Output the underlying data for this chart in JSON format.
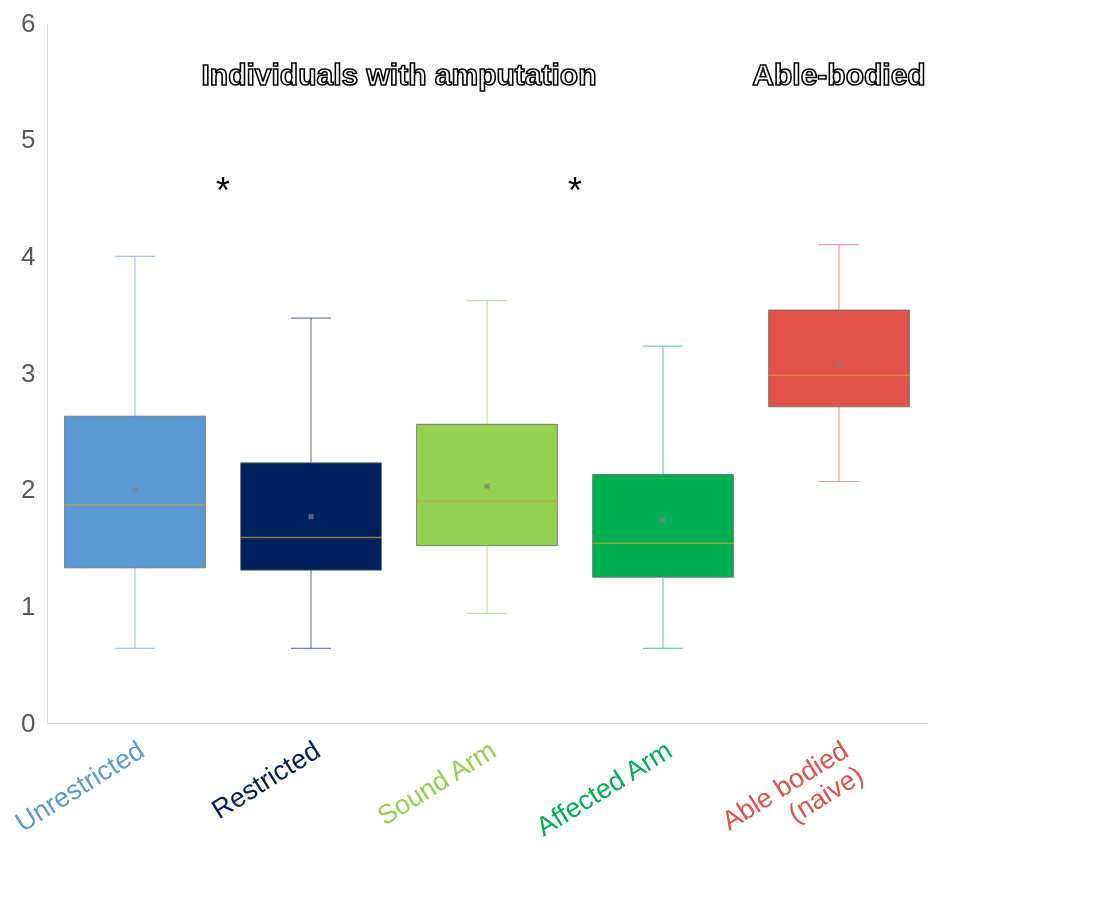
{
  "chart_data": {
    "type": "box",
    "categories": [
      "Unrestricted",
      "Restricted",
      "Sound Arm",
      "Affected Arm",
      "Able bodied\n(naive)"
    ],
    "colors": [
      "#5b9bd5",
      "#002060",
      "#92d050",
      "#00b050",
      "#e0524a"
    ],
    "boxes": [
      {
        "low": 0.64,
        "q1": 1.33,
        "median": 1.87,
        "q3": 2.63,
        "high": 4.0,
        "mean": 2.0
      },
      {
        "low": 0.64,
        "q1": 1.31,
        "median": 1.59,
        "q3": 2.23,
        "high": 3.47,
        "mean": 1.77
      },
      {
        "low": 0.94,
        "q1": 1.52,
        "median": 1.9,
        "q3": 2.56,
        "high": 3.62,
        "mean": 2.03
      },
      {
        "low": 0.64,
        "q1": 1.25,
        "median": 1.54,
        "q3": 2.13,
        "high": 3.23,
        "mean": 1.74
      },
      {
        "low": 2.07,
        "q1": 2.71,
        "median": 2.98,
        "q3": 3.54,
        "high": 4.1,
        "mean": 3.07
      }
    ],
    "ylim": [
      0,
      6
    ],
    "yticks": [
      0,
      1,
      2,
      3,
      4,
      5,
      6
    ],
    "grid": false,
    "marker": "cross",
    "annotations": [
      "Individuals with amputation",
      "Able-bodied",
      "*",
      "*"
    ]
  }
}
